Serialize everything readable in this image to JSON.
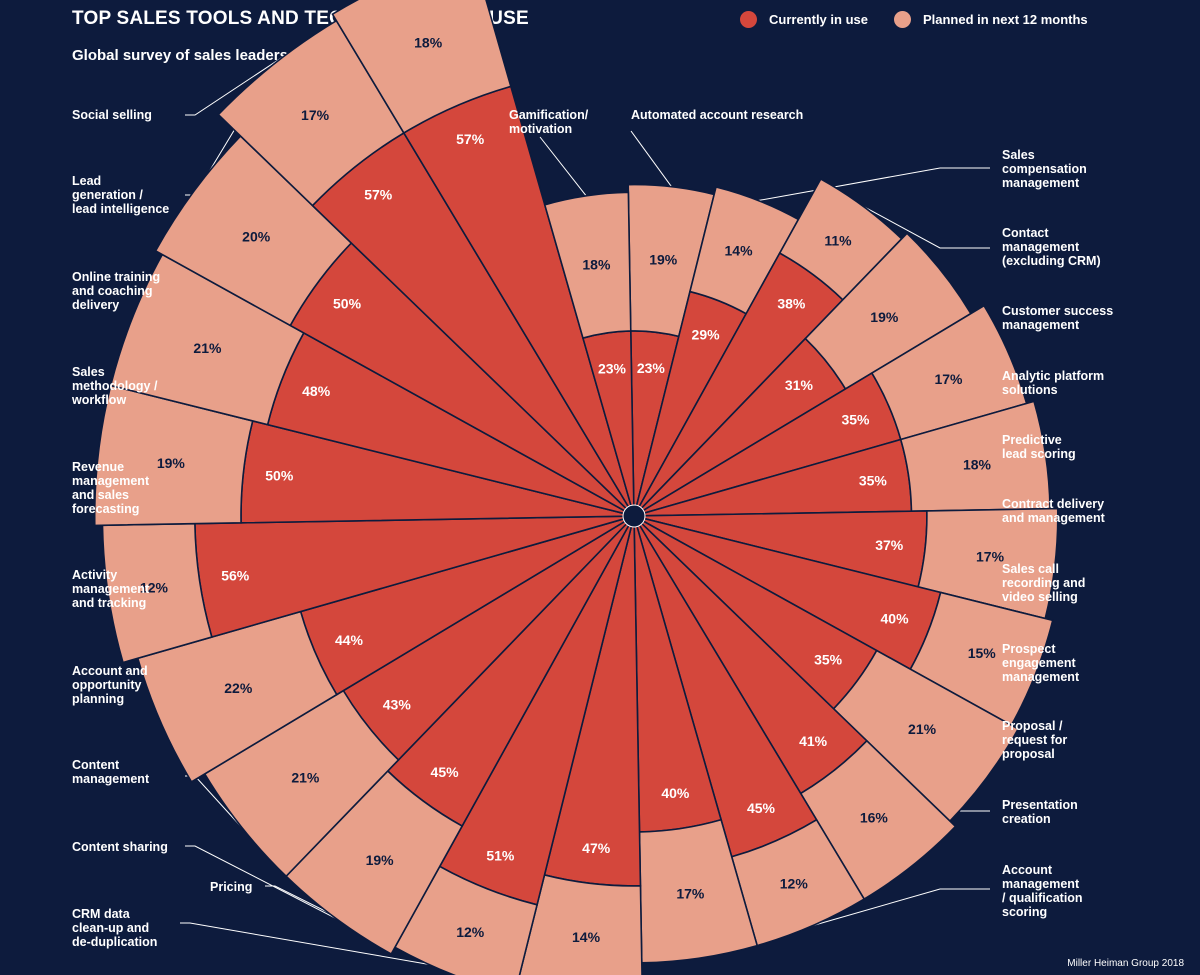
{
  "title": "TOP SALES TOOLS AND TECHNOLOGIES IN USE",
  "subtitle": "Global survey of sales leaders",
  "legend": [
    {
      "label": "Currently in use",
      "color": "#d4473c"
    },
    {
      "label": "Planned in next 12 months",
      "color": "#e8a08a"
    }
  ],
  "source": "Miller Heiman Group 2018",
  "colors": {
    "background": "#0d1b3d",
    "current": "#d4473c",
    "planned": "#e8a08a",
    "text_dark": "#0d1b3d"
  },
  "chart_data": {
    "type": "radial-stacked-bar",
    "series": [
      {
        "name": "Currently in use",
        "values": [
          23,
          29,
          38,
          31,
          35,
          35,
          37,
          40,
          35,
          41,
          45,
          40,
          47,
          51,
          45,
          43,
          44,
          56,
          50,
          48,
          50,
          57,
          57,
          23
        ]
      },
      {
        "name": "Planned in next 12 months",
        "values": [
          19,
          14,
          11,
          19,
          17,
          18,
          17,
          15,
          21,
          16,
          12,
          17,
          14,
          12,
          19,
          21,
          22,
          12,
          19,
          21,
          20,
          17,
          18,
          18
        ]
      }
    ],
    "categories": [
      "Automated account research",
      "Sales compensation management",
      "Contact management (excluding CRM)",
      "Customer success management",
      "Analytic platform solutions",
      "Predictive lead scoring",
      "Contract delivery and management",
      "Sales call recording and video selling",
      "Prospect engagement management",
      "Proposal / request for proposal",
      "Presentation creation",
      "Account management / qualification scoring",
      "CRM data clean-up and de-duplication",
      "Pricing",
      "Content sharing",
      "Content management",
      "Account and opportunity planning",
      "Activity management and tracking",
      "Revenue management and sales forecasting",
      "Sales methodology / workflow",
      "Online training and coaching delivery",
      "Lead generation / lead intelligence",
      "Social selling",
      "Gamification/ motivation"
    ],
    "category_label_lines": [
      [
        "Automated account research"
      ],
      [
        "Sales",
        "compensation",
        "management"
      ],
      [
        "Contact",
        "management",
        "(excluding CRM)"
      ],
      [
        "Customer success",
        "management"
      ],
      [
        "Analytic platform",
        "solutions"
      ],
      [
        "Predictive",
        "lead scoring"
      ],
      [
        "Contract delivery",
        "and management"
      ],
      [
        "Sales call",
        "recording and",
        "video selling"
      ],
      [
        "Prospect",
        "engagement",
        "management"
      ],
      [
        "Proposal /",
        "request for",
        "proposal"
      ],
      [
        "Presentation",
        "creation"
      ],
      [
        "Account",
        "management",
        "/ qualification",
        "scoring"
      ],
      [
        "CRM data",
        "clean-up and",
        "de-duplication"
      ],
      [
        "Pricing"
      ],
      [
        "Content sharing"
      ],
      [
        "Content",
        "management"
      ],
      [
        "Account and",
        "opportunity",
        "planning"
      ],
      [
        "Activity",
        "management",
        "and tracking"
      ],
      [
        "Revenue",
        "management",
        "and sales",
        "forecasting"
      ],
      [
        "Sales",
        "methodology /",
        "workflow"
      ],
      [
        "Online training",
        "and coaching",
        "delivery"
      ],
      [
        "Lead",
        "generation /",
        "lead intelligence"
      ],
      [
        "Social selling"
      ],
      [
        "Gamification/",
        "motivation"
      ]
    ],
    "value_suffix": "%"
  }
}
